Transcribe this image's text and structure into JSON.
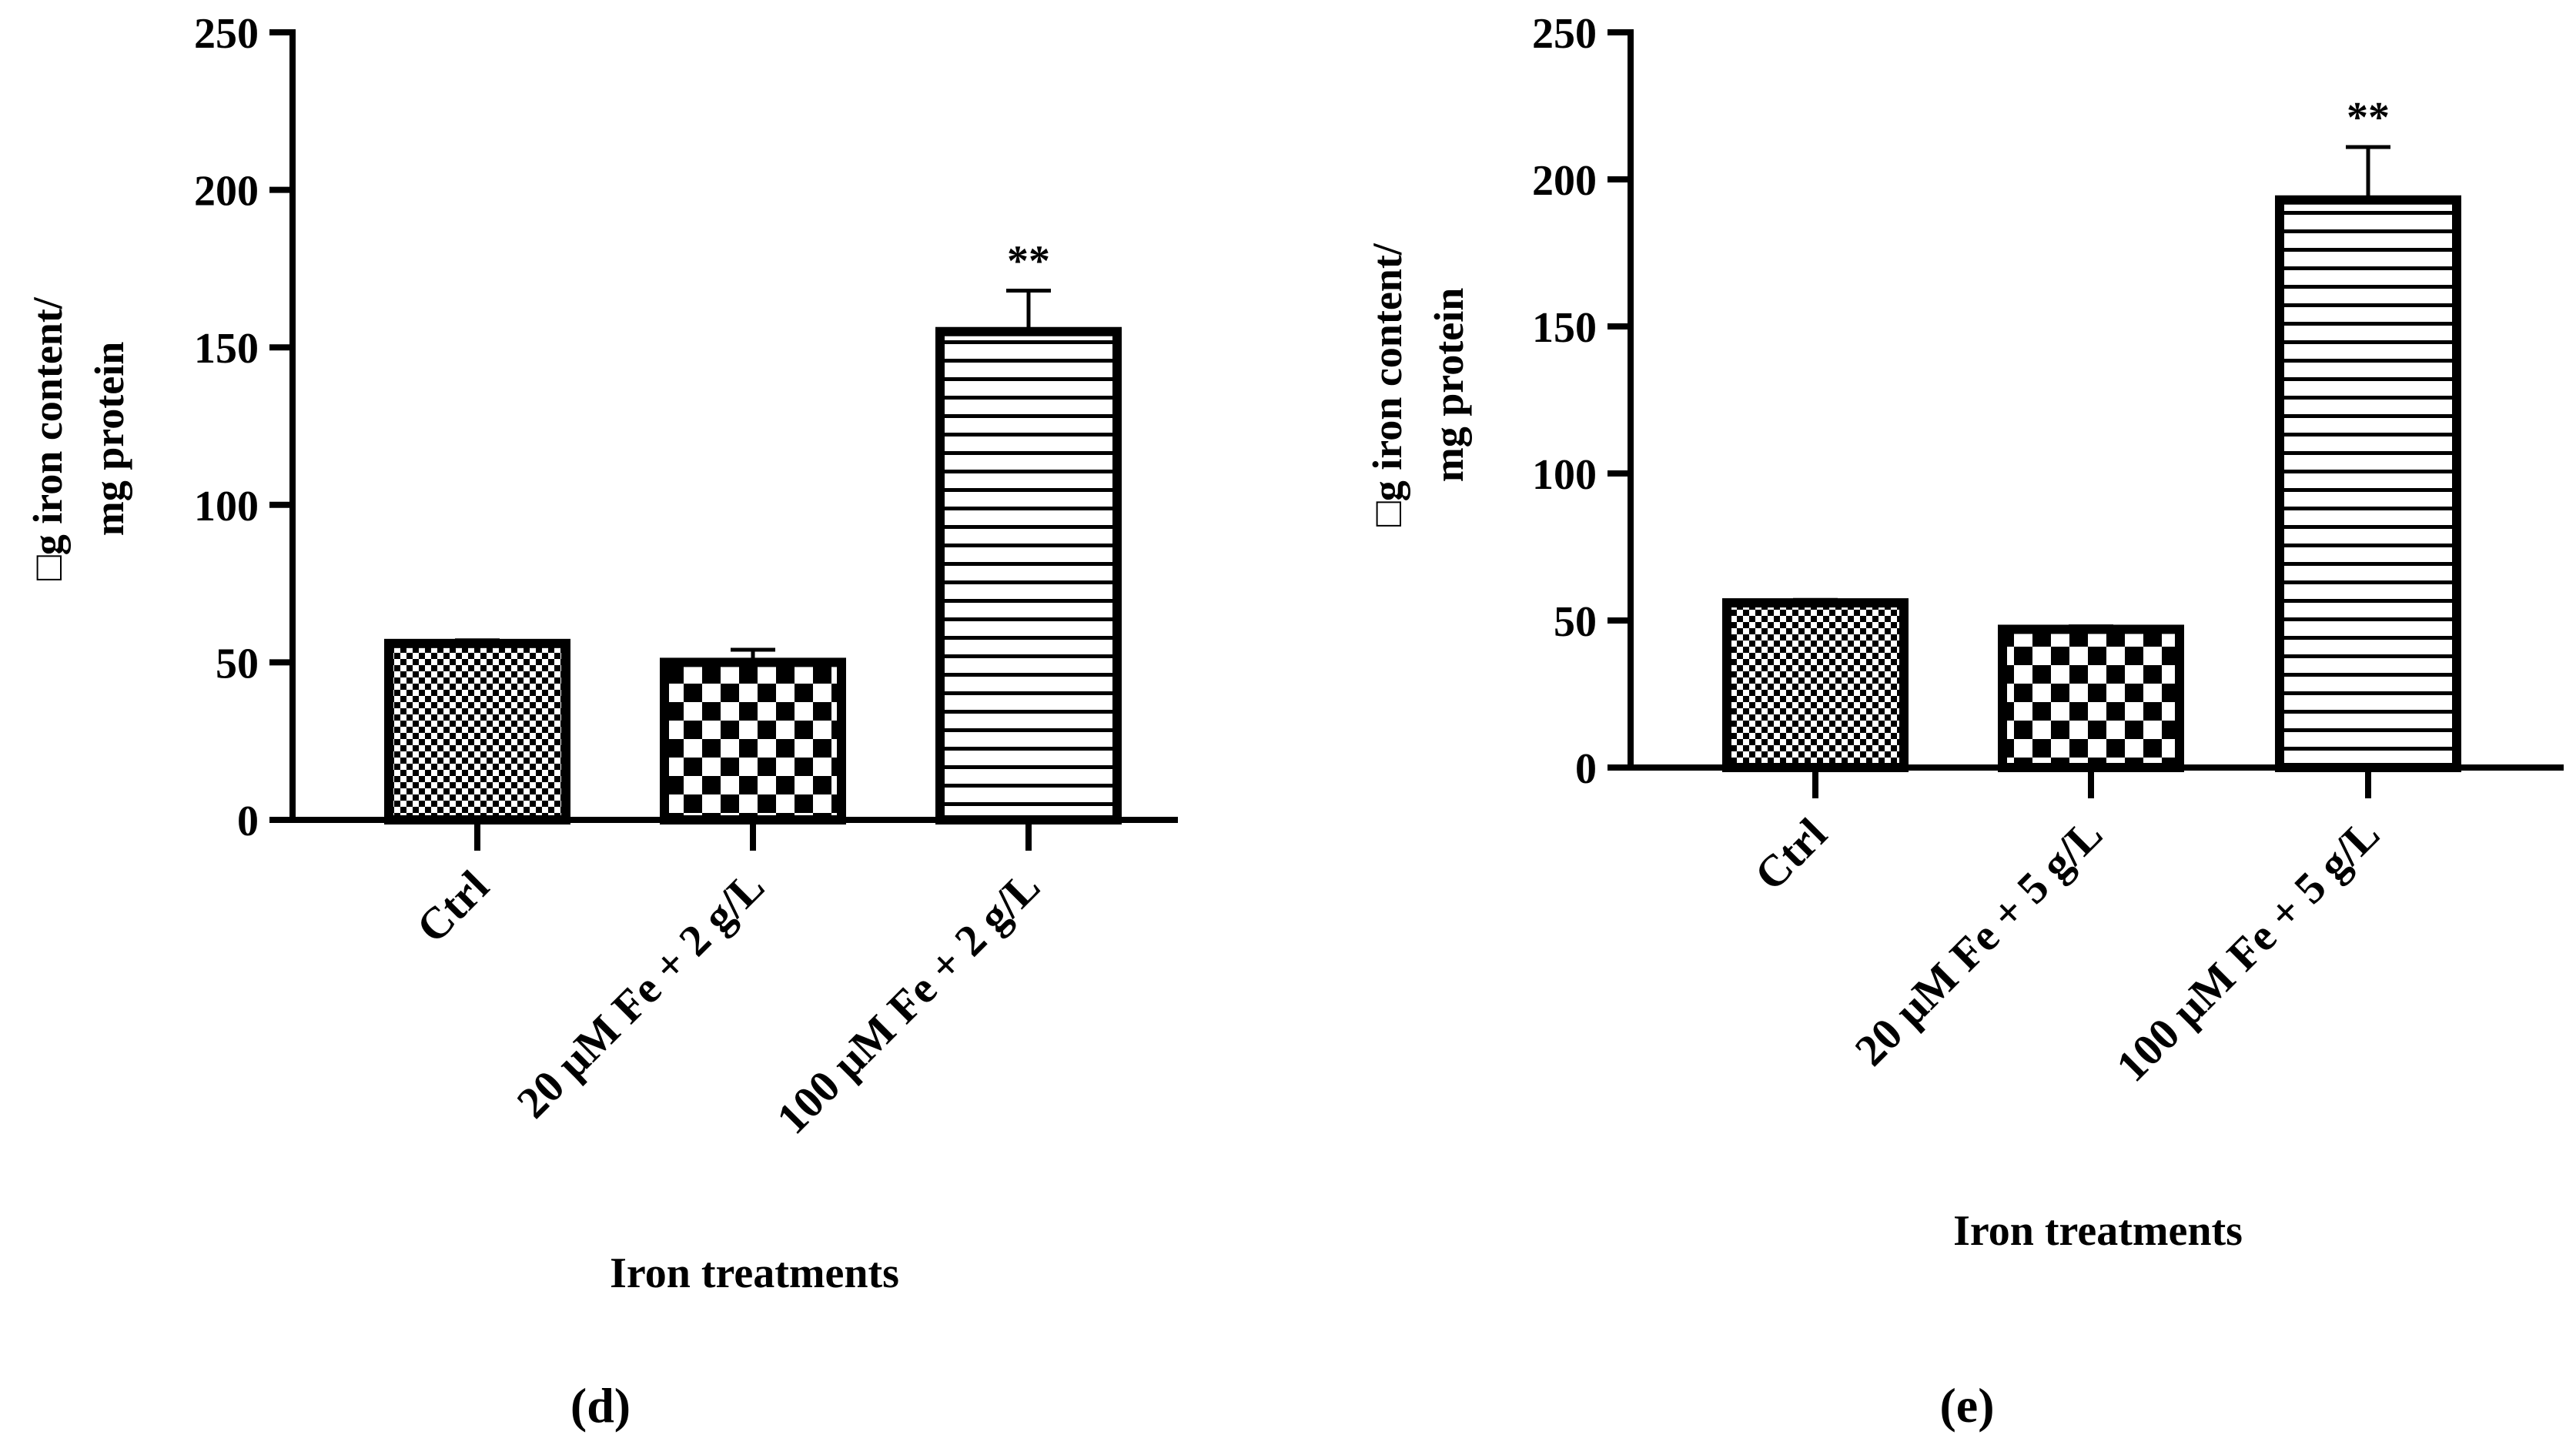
{
  "chart_data": [
    {
      "type": "bar",
      "panel_label": "d",
      "categories": [
        "Ctrl",
        "20 μM Fe + 2 g/L",
        "100 μM Fe + 2 g/L"
      ],
      "values": [
        56,
        50,
        155
      ],
      "errors": [
        1,
        4,
        13
      ],
      "significance": [
        "",
        "",
        "**"
      ],
      "patterns": [
        "fine-check",
        "coarse-check",
        "horizontal-lines"
      ],
      "xlabel": "Iron treatments",
      "ylabel_line1": "□g iron content/",
      "ylabel_line2": "mg protein",
      "ylim": [
        0,
        250
      ],
      "yticks": [
        0,
        50,
        100,
        150,
        200,
        250
      ]
    },
    {
      "type": "bar",
      "panel_label": "e",
      "categories": [
        "Ctrl",
        "20 μM Fe + 5 g/L",
        "100 μM Fe + 5 g/L"
      ],
      "values": [
        56,
        47,
        193
      ],
      "errors": [
        1,
        1,
        18
      ],
      "significance": [
        "",
        "",
        "**"
      ],
      "patterns": [
        "fine-check",
        "coarse-check",
        "horizontal-lines"
      ],
      "xlabel": "Iron treatments",
      "ylabel_line1": "□g iron content/",
      "ylabel_line2": "mg protein",
      "ylim": [
        0,
        250
      ],
      "yticks": [
        0,
        50,
        100,
        150,
        200,
        250
      ]
    }
  ]
}
